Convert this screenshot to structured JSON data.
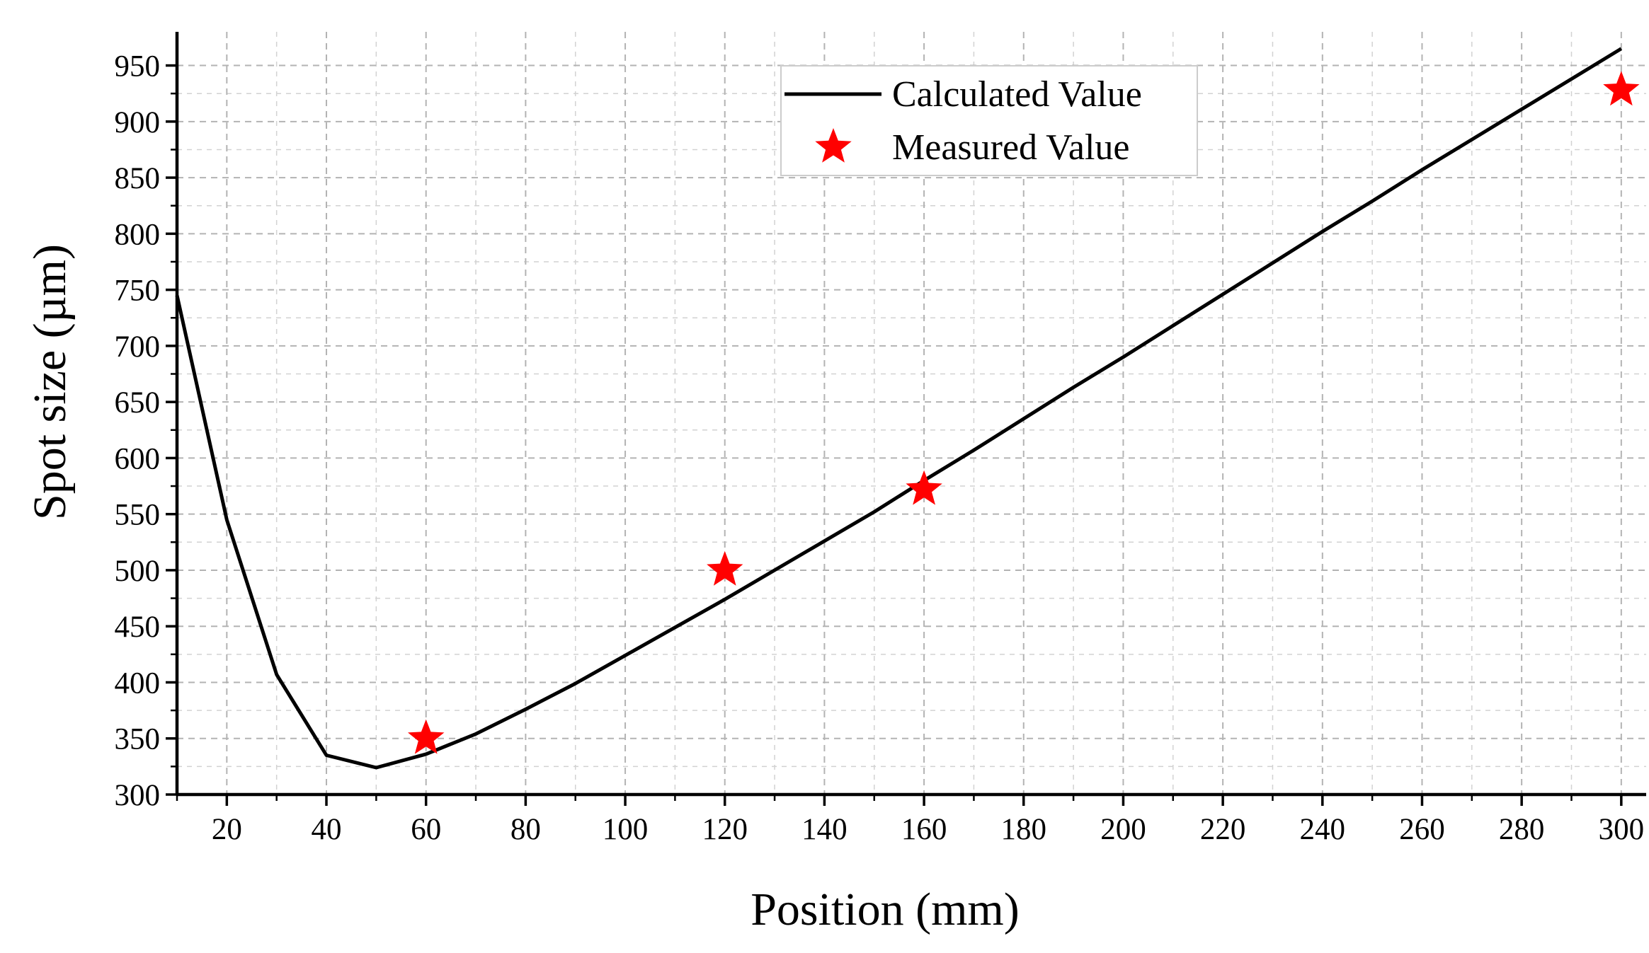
{
  "chart_data": {
    "type": "line",
    "xlabel": "Position (mm)",
    "ylabel": "Spot size (µm)",
    "xlim": [
      10,
      305
    ],
    "ylim": [
      300,
      980
    ],
    "x_ticks": [
      20,
      40,
      60,
      80,
      100,
      120,
      140,
      160,
      180,
      200,
      220,
      240,
      260,
      280,
      300
    ],
    "x_minor_ticks": [
      10,
      30,
      50,
      70,
      90,
      110,
      130,
      150,
      170,
      190,
      210,
      230,
      250,
      270,
      290
    ],
    "y_ticks": [
      300,
      350,
      400,
      450,
      500,
      550,
      600,
      650,
      700,
      750,
      800,
      850,
      900,
      950
    ],
    "y_minor_ticks": [
      325,
      375,
      425,
      475,
      525,
      575,
      625,
      675,
      725,
      775,
      825,
      875,
      925
    ],
    "grid": true,
    "legend_position": "top-right",
    "series": [
      {
        "name": "Calculated Value",
        "style": "line",
        "color": "#000000",
        "x": [
          10,
          20,
          30,
          40,
          50,
          60,
          70,
          80,
          90,
          100,
          110,
          120,
          130,
          140,
          150,
          160,
          170,
          180,
          190,
          200,
          210,
          220,
          230,
          240,
          250,
          260,
          270,
          280,
          290,
          300
        ],
        "y": [
          745,
          545,
          407,
          335,
          324,
          336,
          354,
          376,
          399,
          424,
          449,
          474,
          500,
          526,
          552,
          580,
          607,
          635,
          663,
          690,
          718,
          746,
          774,
          802,
          829,
          857,
          884,
          911,
          938,
          965
        ]
      },
      {
        "name": "Measured Value",
        "style": "star",
        "color": "#ff0000",
        "x": [
          60,
          120,
          160,
          300
        ],
        "y": [
          350,
          500,
          572,
          928
        ]
      }
    ]
  }
}
